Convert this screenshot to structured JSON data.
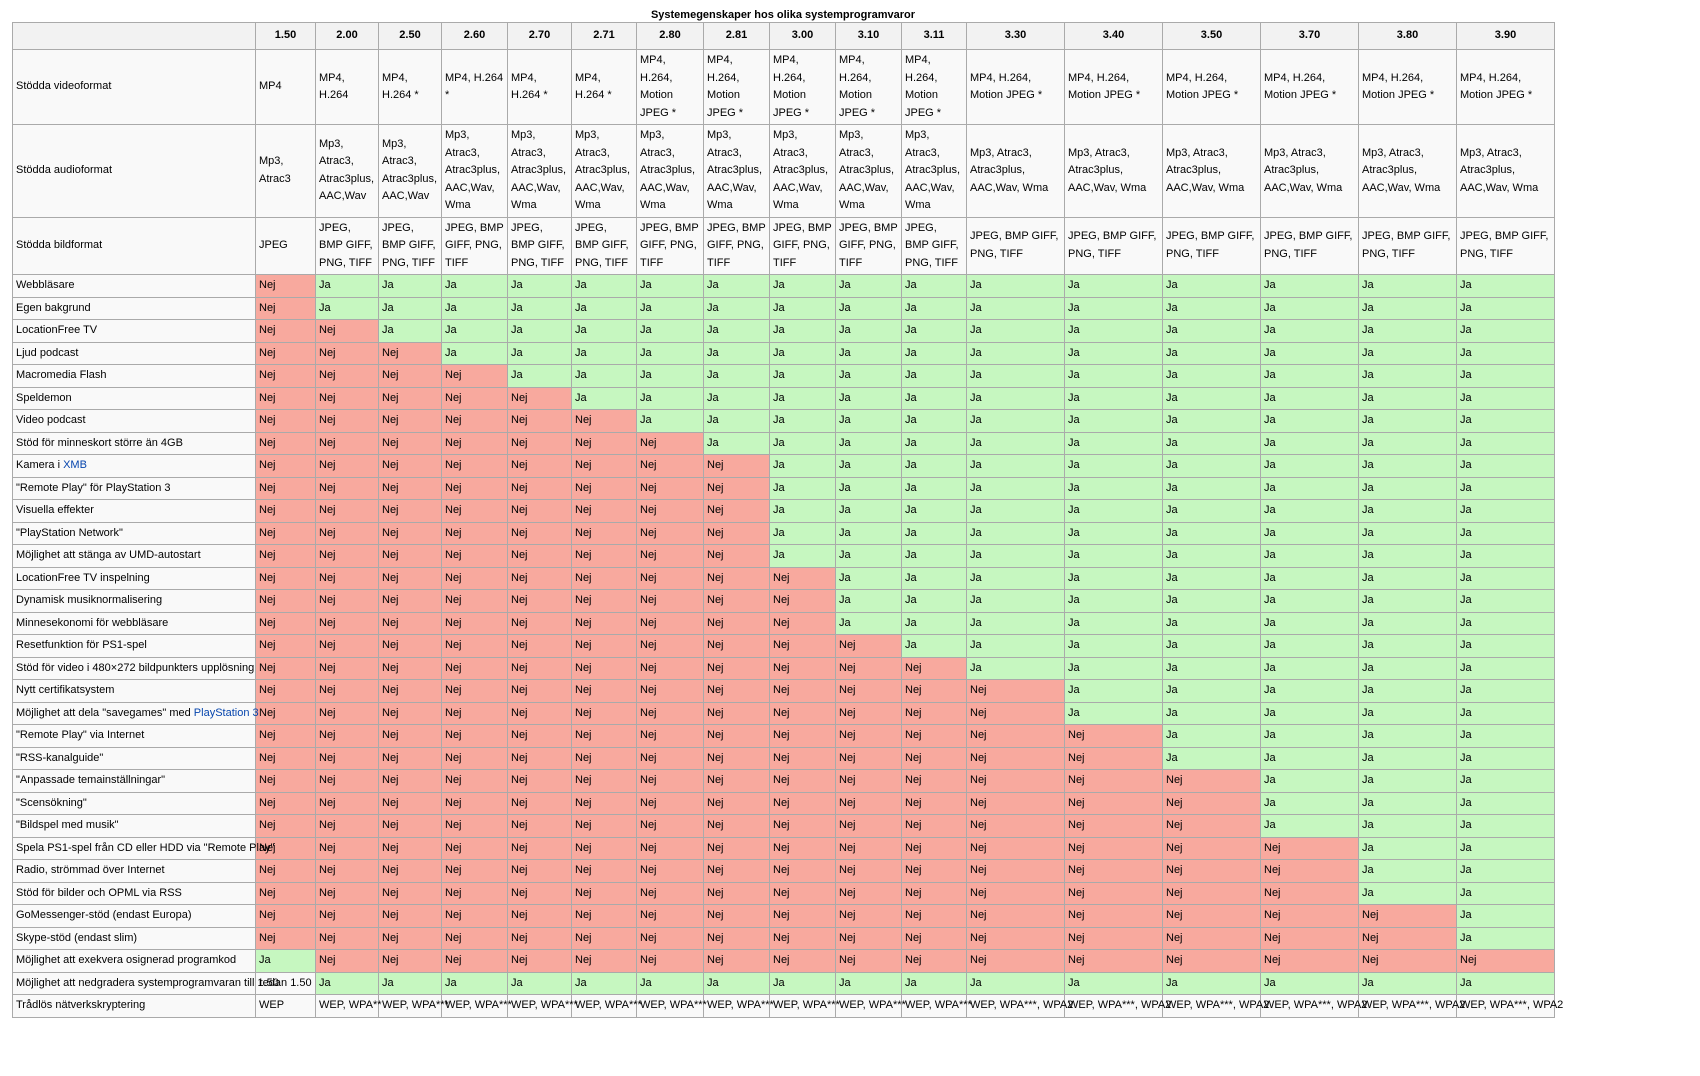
{
  "caption": "Systemegenskaper hos olika systemprogramvaror",
  "versions": [
    "1.50",
    "2.00",
    "2.50",
    "2.60",
    "2.70",
    "2.71",
    "2.80",
    "2.81",
    "3.00",
    "3.10",
    "3.11",
    "3.30",
    "3.40",
    "3.50",
    "3.70",
    "3.80",
    "3.90"
  ],
  "format_rows": [
    {
      "label": "Stödda videoformat",
      "cls": "r-video",
      "cells": [
        "MP4",
        "MP4, H.264",
        "MP4, H.264 *",
        "MP4, H.264 *",
        "MP4, H.264 *",
        "MP4, H.264 *",
        "MP4, H.264, Motion JPEG *",
        "MP4, H.264, Motion JPEG *",
        "MP4, H.264, Motion JPEG *",
        "MP4, H.264, Motion JPEG *",
        "MP4, H.264, Motion JPEG *",
        "MP4, H.264, Motion JPEG *",
        "MP4, H.264, Motion JPEG *",
        "MP4, H.264, Motion JPEG *",
        "MP4, H.264, Motion JPEG *",
        "MP4, H.264, Motion JPEG *",
        "MP4, H.264, Motion JPEG *"
      ]
    },
    {
      "label": "Stödda audioformat",
      "cls": "r-audio",
      "cells": [
        "Mp3, Atrac3",
        "Mp3, Atrac3, Atrac3plus, AAC,Wav",
        "Mp3, Atrac3, Atrac3plus, AAC,Wav",
        "Mp3, Atrac3, Atrac3plus, AAC,Wav, Wma",
        "Mp3, Atrac3, Atrac3plus, AAC,Wav, Wma",
        "Mp3, Atrac3, Atrac3plus, AAC,Wav, Wma",
        "Mp3, Atrac3, Atrac3plus, AAC,Wav, Wma",
        "Mp3, Atrac3, Atrac3plus, AAC,Wav, Wma",
        "Mp3, Atrac3, Atrac3plus, AAC,Wav, Wma",
        "Mp3, Atrac3, Atrac3plus, AAC,Wav, Wma",
        "Mp3, Atrac3, Atrac3plus, AAC,Wav, Wma",
        "Mp3, Atrac3, Atrac3plus, AAC,Wav, Wma",
        "Mp3, Atrac3, Atrac3plus, AAC,Wav, Wma",
        "Mp3, Atrac3, Atrac3plus, AAC,Wav, Wma",
        "Mp3, Atrac3, Atrac3plus, AAC,Wav, Wma",
        "Mp3, Atrac3, Atrac3plus, AAC,Wav, Wma",
        "Mp3, Atrac3, Atrac3plus, AAC,Wav, Wma"
      ]
    },
    {
      "label": "Stödda bildformat",
      "cls": "r-image",
      "cells": [
        "JPEG",
        "JPEG, BMP GIFF, PNG, TIFF",
        "JPEG, BMP GIFF, PNG, TIFF",
        "JPEG, BMP GIFF, PNG, TIFF",
        "JPEG, BMP GIFF, PNG, TIFF",
        "JPEG, BMP GIFF, PNG, TIFF",
        "JPEG, BMP GIFF, PNG, TIFF",
        "JPEG, BMP GIFF, PNG, TIFF",
        "JPEG, BMP GIFF, PNG, TIFF",
        "JPEG, BMP GIFF, PNG, TIFF",
        "JPEG, BMP GIFF, PNG, TIFF",
        "JPEG, BMP GIFF, PNG, TIFF",
        "JPEG, BMP GIFF, PNG, TIFF",
        "JPEG, BMP GIFF, PNG, TIFF",
        "JPEG, BMP GIFF, PNG, TIFF",
        "JPEG, BMP GIFF, PNG, TIFF",
        "JPEG, BMP GIFF, PNG, TIFF"
      ]
    }
  ],
  "yes_label": "Ja",
  "no_label": "Nej",
  "feature_rows": [
    {
      "label": "Webbläsare",
      "first_yes": 1
    },
    {
      "label": "Egen bakgrund",
      "first_yes": 1
    },
    {
      "label": "LocationFree TV",
      "first_yes": 2
    },
    {
      "label": "Ljud podcast",
      "first_yes": 3
    },
    {
      "label": "Macromedia Flash",
      "first_yes": 4
    },
    {
      "label": "Speldemon",
      "first_yes": 5
    },
    {
      "label": "Video podcast",
      "first_yes": 6
    },
    {
      "label": "Stöd för minneskort större än 4GB",
      "first_yes": 7
    },
    {
      "label": "Kamera i ",
      "link": "XMB",
      "first_yes": 8
    },
    {
      "label": "\"Remote Play\" för PlayStation 3",
      "first_yes": 8
    },
    {
      "label": "Visuella effekter",
      "first_yes": 8
    },
    {
      "label": "\"PlayStation Network\"",
      "first_yes": 8
    },
    {
      "label": "Möjlighet att stänga av UMD-autostart",
      "first_yes": 8
    },
    {
      "label": "LocationFree TV inspelning",
      "first_yes": 9
    },
    {
      "label": "Dynamisk musiknormalisering",
      "first_yes": 9
    },
    {
      "label": "Minnesekonomi för webbläsare",
      "first_yes": 9
    },
    {
      "label": "Resetfunktion för PS1-spel",
      "first_yes": 10
    },
    {
      "label": "Stöd för video i 480×272 bildpunkters upplösning",
      "first_yes": 11
    },
    {
      "label": "Nytt certifikatsystem",
      "first_yes": 12
    },
    {
      "label": "Möjlighet att dela \"savegames\" med ",
      "link": "PlayStation 3",
      "first_yes": 12
    },
    {
      "label": "\"Remote Play\" via Internet",
      "first_yes": 13
    },
    {
      "label": "\"RSS-kanalguide\"",
      "first_yes": 13
    },
    {
      "label": "\"Anpassade temainställningar\"",
      "first_yes": 14
    },
    {
      "label": "\"Scensökning\"",
      "first_yes": 14
    },
    {
      "label": "\"Bildspel med musik\"",
      "first_yes": 14
    },
    {
      "label": "Spela PS1-spel från CD eller HDD via \"Remote Play\"",
      "first_yes": 15
    },
    {
      "label": "Radio, strömmad över Internet",
      "first_yes": 15
    },
    {
      "label": "Stöd för bilder och OPML via RSS",
      "first_yes": 15
    },
    {
      "label": "GoMessenger-stöd (endast Europa)",
      "first_yes": 16
    },
    {
      "label": "Skype-stöd (endast slim)",
      "first_yes": 16
    }
  ],
  "special_rows": [
    {
      "label": "Möjlighet att exekvera osignerad programkod",
      "cells": [
        "Ja",
        "Nej",
        "Nej",
        "Nej",
        "Nej",
        "Nej",
        "Nej",
        "Nej",
        "Nej",
        "Nej",
        "Nej",
        "Nej",
        "Nej",
        "Nej",
        "Nej",
        "Nej",
        "Nej"
      ],
      "classes": [
        "ja",
        "nej",
        "nej",
        "nej",
        "nej",
        "nej",
        "nej",
        "nej",
        "nej",
        "nej",
        "nej",
        "nej",
        "nej",
        "nej",
        "nej",
        "nej",
        "nej"
      ]
    },
    {
      "label": "Möjlighet att nedgradera systemprogramvaran till 1.50",
      "cells": [
        "redan 1.50",
        "Ja",
        "Ja",
        "Ja",
        "Ja",
        "Ja",
        "Ja",
        "Ja",
        "Ja",
        "Ja",
        "Ja",
        "Ja",
        "Ja",
        "Ja",
        "Ja",
        "Ja",
        "Ja"
      ],
      "classes": [
        "plain",
        "ja",
        "ja",
        "ja",
        "ja",
        "ja",
        "ja",
        "ja",
        "ja",
        "ja",
        "ja",
        "ja",
        "ja",
        "ja",
        "ja",
        "ja",
        "ja"
      ]
    },
    {
      "label": "Trådlös nätverkskryptering",
      "cells": [
        "WEP",
        "WEP, WPA**",
        "WEP, WPA***",
        "WEP, WPA***",
        "WEP, WPA***",
        "WEP, WPA***",
        "WEP, WPA***",
        "WEP, WPA***",
        "WEP, WPA***",
        "WEP, WPA***",
        "WEP, WPA***",
        "WEP, WPA***, WPA2",
        "WEP, WPA***, WPA2",
        "WEP, WPA***, WPA2",
        "WEP, WPA***, WPA2",
        "WEP, WPA***, WPA2",
        "WEP, WPA***, WPA2"
      ],
      "classes": [
        "plain",
        "plain",
        "plain",
        "plain",
        "plain",
        "plain",
        "plain",
        "plain",
        "plain",
        "plain",
        "plain",
        "plain",
        "plain",
        "plain",
        "plain",
        "plain",
        "plain"
      ]
    }
  ],
  "colors": {
    "yes": "#c6f7c0",
    "no": "#f8a99e",
    "link": "#0645ad",
    "border": "#aaaaaa"
  }
}
